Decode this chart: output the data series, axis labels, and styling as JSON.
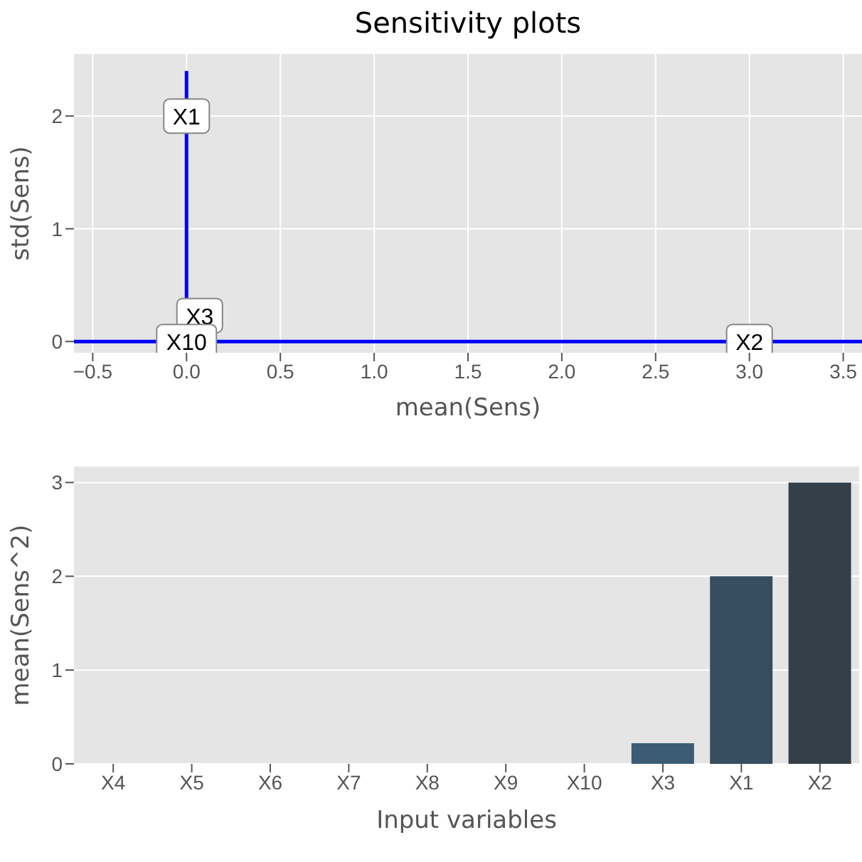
{
  "chart_data": [
    {
      "type": "scatter",
      "title": "Sensitivity plots",
      "xlabel": "mean(Sens)",
      "ylabel": "std(Sens)",
      "series": [
        {
          "type": "scatter",
          "x": [
            0,
            0.07,
            0,
            3
          ],
          "values": [
            2,
            0.23,
            0,
            0
          ],
          "value_labels": [
            "X1",
            "X3",
            "X10",
            "X2"
          ]
        },
        {
          "type": "line",
          "color": "#0000ff",
          "x": [
            0,
            0
          ],
          "values": [
            0,
            2.4
          ]
        },
        {
          "type": "line",
          "color": "#0000ff",
          "x": [
            -0.6,
            3.6
          ],
          "values": [
            0,
            0
          ]
        }
      ],
      "xlim": [
        -0.6,
        3.6
      ],
      "ylim": [
        -0.1,
        2.55
      ],
      "xticks": [
        {
          "value": -0.5,
          "label": "−0.5"
        },
        {
          "value": 0,
          "label": "0.0"
        },
        {
          "value": 0.5,
          "label": "0.5"
        },
        {
          "value": 1,
          "label": "1.0"
        },
        {
          "value": 1.5,
          "label": "1.5"
        },
        {
          "value": 2,
          "label": "2.0"
        },
        {
          "value": 2.5,
          "label": "2.5"
        },
        {
          "value": 3,
          "label": "3.0"
        },
        {
          "value": 3.5,
          "label": "3.5"
        }
      ],
      "yticks": [
        0,
        1,
        2
      ],
      "grid": true
    },
    {
      "type": "bar",
      "xlabel": "Input variables",
      "ylabel": "mean(Sens^2)",
      "categories": [
        "X4",
        "X5",
        "X6",
        "X7",
        "X8",
        "X9",
        "X10",
        "X3",
        "X1",
        "X2"
      ],
      "values": [
        0,
        0,
        0,
        0,
        0,
        0,
        0,
        0.22,
        2,
        3
      ],
      "colors": [
        "#4a7fa8",
        "#477aa0",
        "#457498",
        "#436e8f",
        "#416886",
        "#3f637e",
        "#3d5f78",
        "#3b5c74",
        "#364d5f",
        "#343f48"
      ],
      "ylim": [
        0,
        3.17
      ],
      "yticks": [
        0,
        1,
        2,
        3
      ],
      "grid": "y"
    }
  ]
}
